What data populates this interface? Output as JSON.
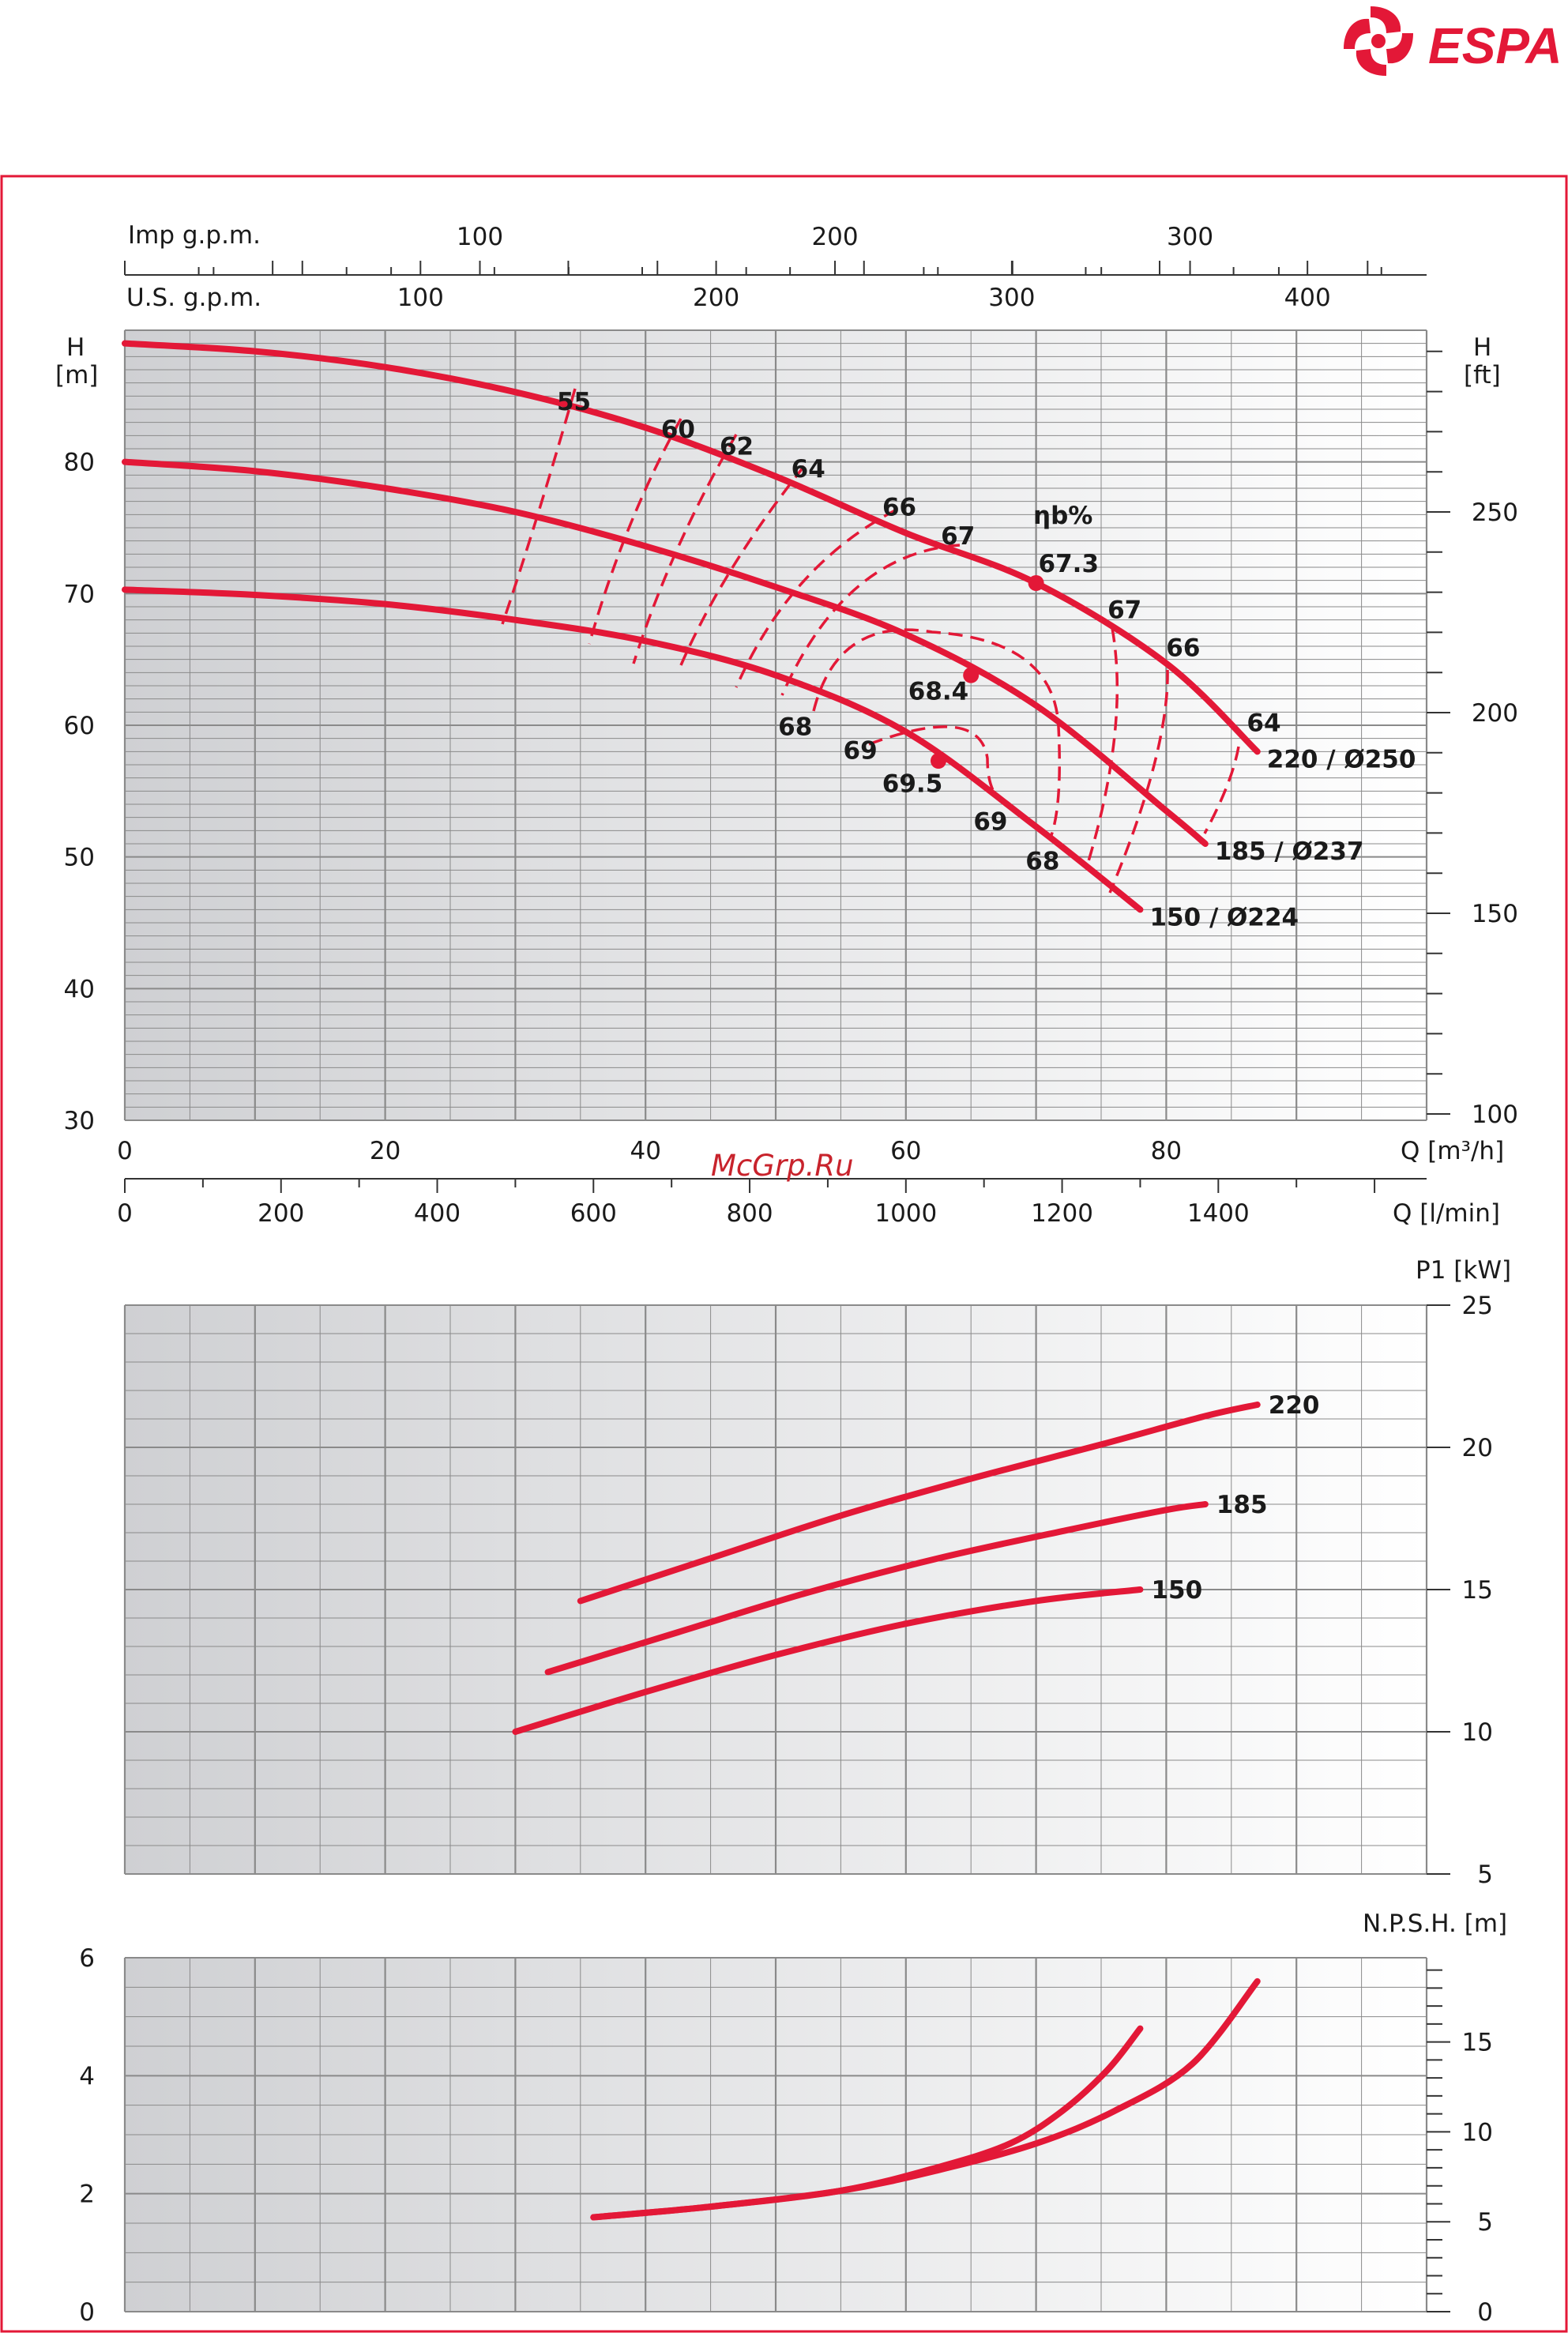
{
  "brand": {
    "name": "ESPA",
    "color": "#e31837",
    "logo_icon": "espa-impeller-logo"
  },
  "watermark": "McGrp.Ru",
  "colors": {
    "curve": "#e31837",
    "frame": "#e31837",
    "grid": "#8a8a8a",
    "gradient_dark": "#cfd0d3",
    "gradient_light": "#ffffff"
  },
  "labels": {
    "imp_gpm": "Imp g.p.m.",
    "us_gpm": "U.S. g.p.m.",
    "h_m": [
      "H",
      "[m]"
    ],
    "h_ft": [
      "H",
      "[ft]"
    ],
    "q_m3h": "Q [m³/h]",
    "q_lmin": "Q [l/min]",
    "p1": "P1 [kW]",
    "npsh": "N.P.S.H. [m]",
    "eta": "ηb%"
  },
  "chart_data": [
    {
      "type": "line",
      "name": "head",
      "x_unit": "m3/h",
      "xlim": [
        0,
        100
      ],
      "ylim": [
        30,
        90
      ],
      "y_ticks": [
        "30",
        "40",
        "50",
        "60",
        "70",
        "80"
      ],
      "x_ticks": [
        "0",
        "20",
        "40",
        "60",
        "80"
      ],
      "lmin_ticks": [
        "0",
        "200",
        "400",
        "600",
        "800",
        "1000",
        "1200",
        "1400"
      ],
      "ft_ticks": [
        "100",
        "150",
        "200",
        "250"
      ],
      "us_gpm_ticks": [
        "100",
        "200",
        "300",
        "400"
      ],
      "imp_gpm_ticks": [
        "100",
        "200",
        "300"
      ],
      "series": [
        {
          "name": "220 / Ø250",
          "x": [
            0,
            10,
            20,
            30,
            40,
            50,
            60,
            70,
            80,
            87
          ],
          "y": [
            89,
            88.4,
            87.2,
            85.3,
            82.6,
            78.9,
            74.6,
            70.8,
            64.7,
            58
          ]
        },
        {
          "name": "185 / Ø237",
          "x": [
            0,
            10,
            20,
            30,
            40,
            50,
            60,
            70,
            80,
            83
          ],
          "y": [
            80,
            79.3,
            78,
            76.2,
            73.6,
            70.5,
            66.9,
            61.5,
            53.5,
            51
          ]
        },
        {
          "name": "150 / Ø224",
          "x": [
            0,
            10,
            20,
            30,
            40,
            50,
            60,
            70,
            78
          ],
          "y": [
            70.3,
            69.9,
            69.2,
            68,
            66.4,
            63.8,
            59.5,
            52.3,
            46
          ]
        }
      ],
      "efficiency_labels": [
        {
          "text": "55",
          "x": 34.5,
          "y": 84.6
        },
        {
          "text": "60",
          "x": 42.5,
          "y": 82.5
        },
        {
          "text": "62",
          "x": 47,
          "y": 81.2
        },
        {
          "text": "64",
          "x": 52.5,
          "y": 79.5
        },
        {
          "text": "66",
          "x": 59.5,
          "y": 76.6
        },
        {
          "text": "67",
          "x": 64,
          "y": 74.4
        },
        {
          "text": "67.3",
          "x": 72.5,
          "y": 72.3
        },
        {
          "text": "67",
          "x": 76.8,
          "y": 68.8
        },
        {
          "text": "66",
          "x": 81.3,
          "y": 65.9
        },
        {
          "text": "64",
          "x": 87.5,
          "y": 60.2
        },
        {
          "text": "68.4",
          "x": 62.5,
          "y": 62.6
        },
        {
          "text": "68",
          "x": 51.5,
          "y": 59.9
        },
        {
          "text": "69",
          "x": 56.5,
          "y": 58.1
        },
        {
          "text": "69.5",
          "x": 60.5,
          "y": 55.6
        },
        {
          "text": "69",
          "x": 66.5,
          "y": 52.7
        },
        {
          "text": "68",
          "x": 70.5,
          "y": 49.7
        }
      ],
      "bep_points": [
        {
          "x": 70,
          "y": 70.8
        },
        {
          "x": 65,
          "y": 63.8
        },
        {
          "x": 62.5,
          "y": 57.3
        }
      ]
    },
    {
      "type": "line",
      "name": "power",
      "x_unit": "m3/h",
      "xlim": [
        0,
        100
      ],
      "ylim": [
        5,
        25
      ],
      "ylabel": "P1 [kW]",
      "y_ticks": [
        "5",
        "10",
        "15",
        "20",
        "25"
      ],
      "series": [
        {
          "name": "220",
          "x": [
            35,
            45,
            55,
            65,
            75,
            83,
            87
          ],
          "y": [
            14.6,
            16.1,
            17.6,
            18.9,
            20.1,
            21.1,
            21.5
          ]
        },
        {
          "name": "185",
          "x": [
            32.5,
            42.5,
            52.5,
            62.5,
            72.5,
            80,
            83
          ],
          "y": [
            12.1,
            13.5,
            14.9,
            16.1,
            17.1,
            17.8,
            18.0
          ]
        },
        {
          "name": "150",
          "x": [
            30,
            40,
            50,
            60,
            70,
            78
          ],
          "y": [
            10,
            11.4,
            12.7,
            13.8,
            14.6,
            15.0
          ]
        }
      ]
    },
    {
      "type": "line",
      "name": "npsh",
      "x_unit": "m3/h",
      "xlim": [
        0,
        100
      ],
      "ylim": [
        0,
        6
      ],
      "ylabel": "N.P.S.H. [m]",
      "y_ticks": [
        "0",
        "2",
        "4",
        "6"
      ],
      "ft_ticks": [
        "0",
        "5",
        "10",
        "15"
      ],
      "series": [
        {
          "name": "220",
          "x": [
            36,
            45,
            55,
            62.5,
            70,
            76,
            82,
            87
          ],
          "y": [
            1.6,
            1.78,
            2.05,
            2.4,
            2.85,
            3.4,
            4.2,
            5.6
          ]
        },
        {
          "name": "150",
          "x": [
            36,
            45,
            55,
            62.5,
            68,
            72,
            75.5,
            78
          ],
          "y": [
            1.6,
            1.78,
            2.05,
            2.45,
            2.85,
            3.4,
            4.1,
            4.8
          ]
        }
      ]
    }
  ]
}
